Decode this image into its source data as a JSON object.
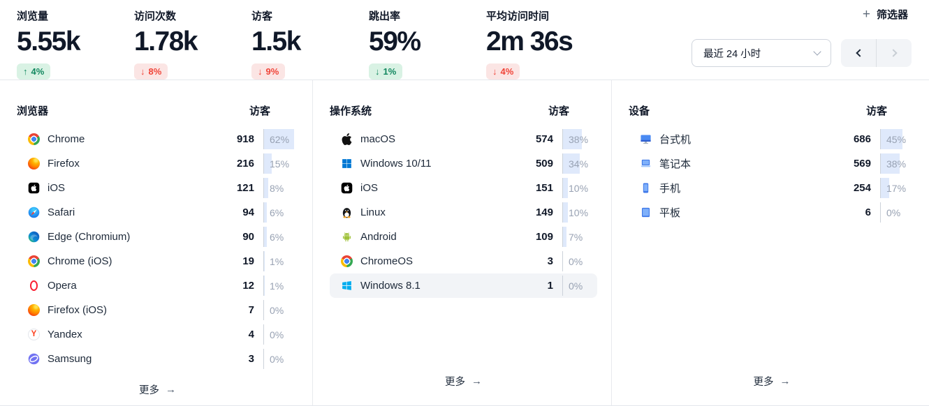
{
  "stats": [
    {
      "label": "浏览量",
      "value": "5.55k",
      "change": "4%",
      "direction": "up",
      "sentiment": "positive"
    },
    {
      "label": "访问次数",
      "value": "1.78k",
      "change": "8%",
      "direction": "down",
      "sentiment": "negative"
    },
    {
      "label": "访客",
      "value": "1.5k",
      "change": "9%",
      "direction": "down",
      "sentiment": "negative"
    },
    {
      "label": "跳出率",
      "value": "59%",
      "change": "1%",
      "direction": "down",
      "sentiment": "positive"
    },
    {
      "label": "平均访问时间",
      "value": "2m 36s",
      "change": "4%",
      "direction": "down",
      "sentiment": "negative"
    }
  ],
  "toolbar": {
    "plus_glyph": "+",
    "filter_label": "筛选器",
    "date_range": "最近 24 小时"
  },
  "icons": {
    "arrow_up": "↑",
    "arrow_down": "↓",
    "more_arrow": "→"
  },
  "panels": [
    {
      "title": "浏览器",
      "value_header": "访客",
      "more_label": "更多",
      "rows": [
        {
          "icon": "chrome",
          "name": "Chrome",
          "value": "918",
          "percent": 62
        },
        {
          "icon": "firefox",
          "name": "Firefox",
          "value": "216",
          "percent": 15
        },
        {
          "icon": "ios",
          "name": "iOS",
          "value": "121",
          "percent": 8
        },
        {
          "icon": "safari",
          "name": "Safari",
          "value": "94",
          "percent": 6
        },
        {
          "icon": "edge",
          "name": "Edge (Chromium)",
          "value": "90",
          "percent": 6
        },
        {
          "icon": "chrome",
          "name": "Chrome (iOS)",
          "value": "19",
          "percent": 1
        },
        {
          "icon": "opera",
          "name": "Opera",
          "value": "12",
          "percent": 1
        },
        {
          "icon": "firefox",
          "name": "Firefox (iOS)",
          "value": "7",
          "percent": 0
        },
        {
          "icon": "yandex",
          "name": "Yandex",
          "value": "4",
          "percent": 0
        },
        {
          "icon": "samsung",
          "name": "Samsung",
          "value": "3",
          "percent": 0
        }
      ]
    },
    {
      "title": "操作系统",
      "value_header": "访客",
      "more_label": "更多",
      "rows": [
        {
          "icon": "apple",
          "name": "macOS",
          "value": "574",
          "percent": 38
        },
        {
          "icon": "windows",
          "name": "Windows 10/11",
          "value": "509",
          "percent": 34
        },
        {
          "icon": "ios",
          "name": "iOS",
          "value": "151",
          "percent": 10
        },
        {
          "icon": "linux",
          "name": "Linux",
          "value": "149",
          "percent": 10
        },
        {
          "icon": "android",
          "name": "Android",
          "value": "109",
          "percent": 7
        },
        {
          "icon": "chrome",
          "name": "ChromeOS",
          "value": "3",
          "percent": 0
        },
        {
          "icon": "windows81",
          "name": "Windows 8.1",
          "value": "1",
          "percent": 0,
          "highlighted": true
        }
      ]
    },
    {
      "title": "设备",
      "value_header": "访客",
      "more_label": "更多",
      "rows": [
        {
          "icon": "desktop",
          "name": "台式机",
          "value": "686",
          "percent": 45
        },
        {
          "icon": "laptop",
          "name": "笔记本",
          "value": "569",
          "percent": 38
        },
        {
          "icon": "phone",
          "name": "手机",
          "value": "254",
          "percent": 17
        },
        {
          "icon": "tablet",
          "name": "平板",
          "value": "6",
          "percent": 0
        }
      ]
    }
  ],
  "colors": {
    "positive_bg": "#d9f2e4",
    "positive_text": "#12875f",
    "negative_bg": "#fbe5e4",
    "negative_text": "#f04438",
    "percent_bar": "#dfe9fb",
    "accent_blue": "#4a8af2"
  }
}
